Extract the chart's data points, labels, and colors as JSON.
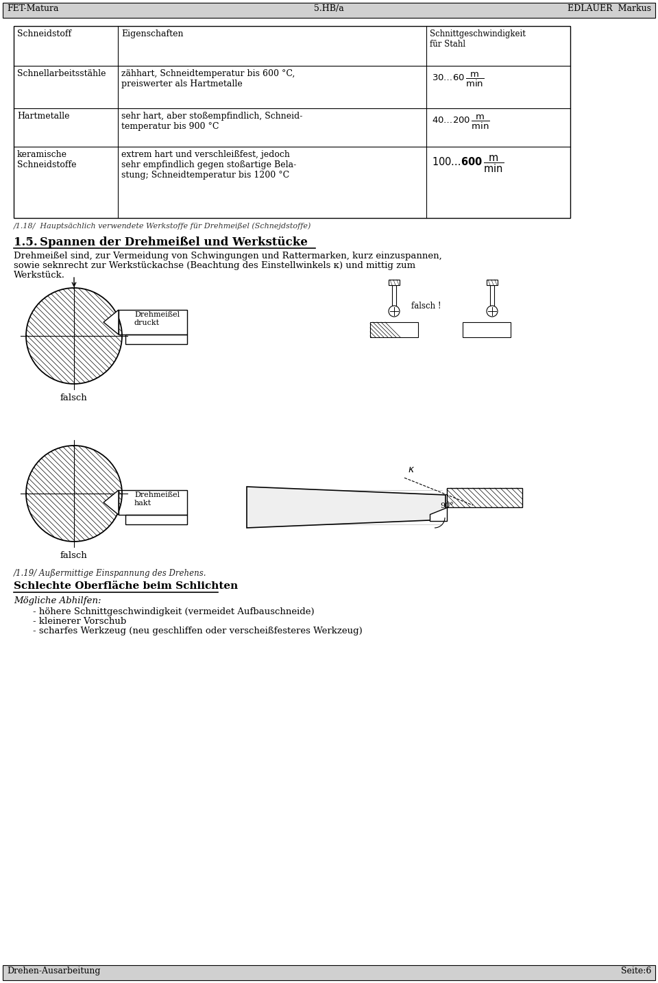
{
  "header_left": "FET-Matura",
  "header_center": "5.HB/a",
  "header_right": "EDLAUER  Markus",
  "footer_left": "Drehen-Ausarbeitung",
  "footer_right": "Seite:6",
  "table_caption": "/1.18/  Hauptsächlich verwendete Werkstoffe für Drehmeißel (Schnejdstoffe)",
  "section_num": "1.5.",
  "section_title": "Spannen der Drehmeißel und Werkstücke",
  "body_line1": "Drehmeißel sind, zur Vermeidung von Schwingungen und Rattermarken, kurz einzuspannen,",
  "body_line2": "sowie seknrecht zur Werkstückachse (Beachtung des Einstellwinkels κ) und mittig zum",
  "body_line3": "Werkstück.",
  "label_falsch1": "falsch",
  "label_falsch2": "falsch",
  "label_falsch_rechts": "falsch !",
  "label_drehmeissel1_line1": "Drehmeißel",
  "label_drehmeissel1_line2": "druckt",
  "label_drehmeissel2_line1": "Drehmeißel",
  "label_drehmeissel2_line2": "hakt",
  "figure_caption": "/1.19/ Außermittige Einspannung des Drehens.",
  "section2_title": "Schlechte Oberfläche beim Schlichten",
  "section2_intro": "Mögliche Abhilfen:",
  "bullet1": "- höhere Schnittgeschwindigkeit (vermeidet Aufbauschneide)",
  "bullet2": "- kleinerer Vorschub",
  "bullet3": "- scharfes Werkzeug (neu geschliffen oder verscheißfesteres Werkzeug)",
  "col1_header": "Schneidstoff",
  "col2_header": "Eigenschaften",
  "col3_header_l1": "Schnittgeschwindigkeit",
  "col3_header_l2": "für Stahl",
  "row1_c1": "Schnellarbeitsstähle",
  "row1_c2_l1": "zähhart, Schneidtemperatur bis 600 °C,",
  "row1_c2_l2": "preiswerter als Hartmetalle",
  "row2_c1": "Hartmetalle",
  "row2_c2_l1": "sehr hart, aber stoßempfindlich, Schneid-",
  "row2_c2_l2": "temperatur bis 900 °C",
  "row3_c1_l1": "keramische",
  "row3_c1_l2": "Schneidstoffe",
  "row3_c2_l1": "extrem hart und verschleißfest, jedoch",
  "row3_c2_l2": "sehr empfindlich gegen stoßartige Bela-",
  "row3_c2_l3": "stung; Schneidtemperatur bis 1200 °C"
}
